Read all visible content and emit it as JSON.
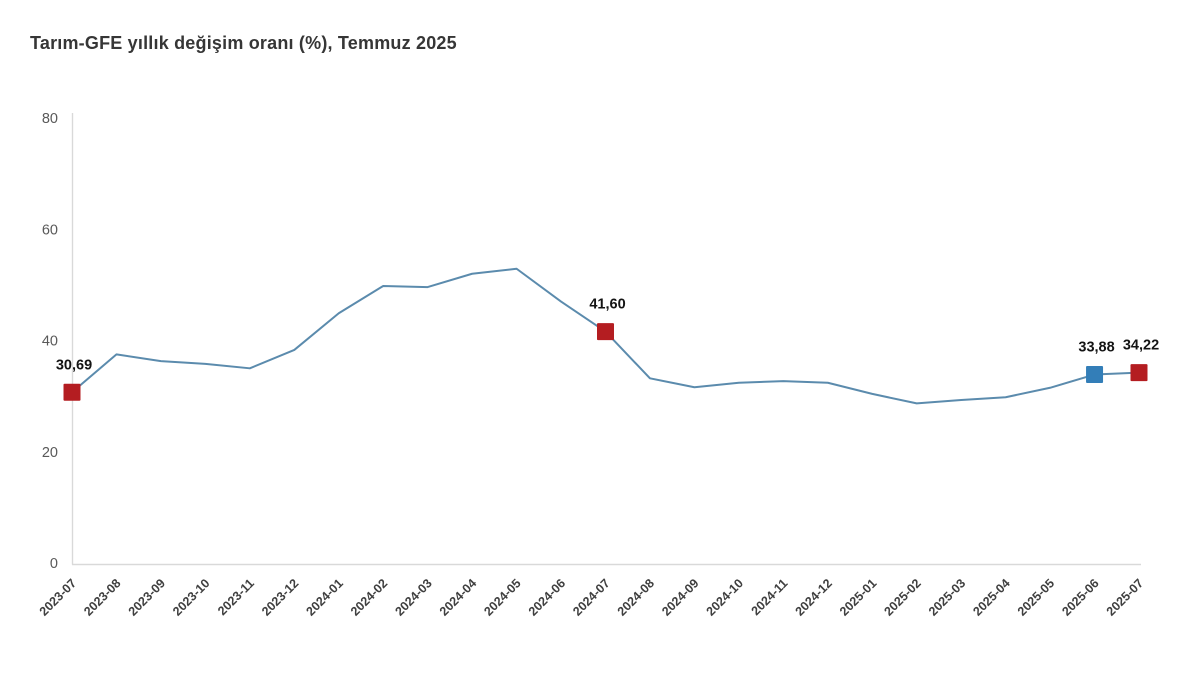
{
  "title": "Tarım-GFE yıllık değişim oranı (%), Temmuz 2025",
  "colors": {
    "background": "#ffffff",
    "line": "#5b8bad",
    "marker_red": "#b41d21",
    "marker_blue": "#337eb8",
    "axis_line": "#d9d9d9",
    "y_tick_text": "#595959",
    "x_tick_text": "#3f3f3f",
    "title_text": "#363636",
    "data_label_text": "#141414"
  },
  "chart_data": {
    "type": "line",
    "title": "Tarım-GFE yıllık değişim oranı (%), Temmuz 2025",
    "xlabel": "",
    "ylabel": "",
    "x_label_rotation_deg": -45,
    "categories": [
      "2023-07",
      "2023-08",
      "2023-09",
      "2023-10",
      "2023-11",
      "2023-12",
      "2024-01",
      "2024-02",
      "2024-03",
      "2024-04",
      "2024-05",
      "2024-06",
      "2024-07",
      "2024-08",
      "2024-09",
      "2024-10",
      "2024-11",
      "2024-12",
      "2025-01",
      "2025-02",
      "2025-03",
      "2025-04",
      "2025-05",
      "2025-06",
      "2025-07"
    ],
    "values": [
      30.69,
      37.5,
      36.3,
      35.8,
      35.0,
      38.3,
      44.9,
      49.8,
      49.6,
      52.0,
      52.9,
      47.0,
      41.6,
      33.2,
      31.6,
      32.4,
      32.7,
      32.4,
      30.4,
      28.7,
      29.3,
      29.8,
      31.5,
      33.88,
      34.22
    ],
    "ylim": [
      0,
      80
    ],
    "yticks": [
      0,
      20,
      40,
      60,
      80
    ],
    "grid": false,
    "legend": "none",
    "highlighted_points": [
      {
        "category": "2023-07",
        "value": 30.69,
        "label": "30,69",
        "marker": "red-square"
      },
      {
        "category": "2024-07",
        "value": 41.6,
        "label": "41,60",
        "marker": "red-square"
      },
      {
        "category": "2025-06",
        "value": 33.88,
        "label": "33,88",
        "marker": "blue-square"
      },
      {
        "category": "2025-07",
        "value": 34.22,
        "label": "34,22",
        "marker": "red-square"
      }
    ]
  }
}
